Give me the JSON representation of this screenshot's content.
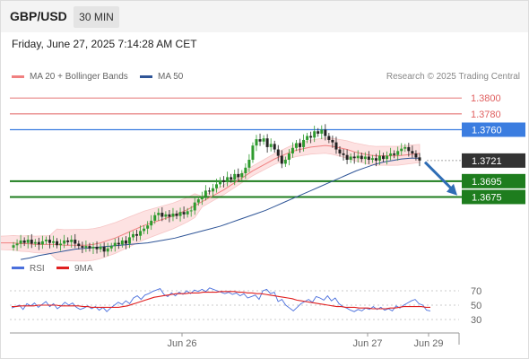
{
  "header": {
    "symbol": "GBP/USD",
    "timeframe": "30 MIN"
  },
  "datetime": "Friday, June 27, 2025 7:14:28 AM CET",
  "legend": {
    "items": [
      {
        "label": "MA 20 + Bollinger Bands",
        "color": "#f08080"
      },
      {
        "label": "MA 50",
        "color": "#2f5597"
      }
    ],
    "credit": "Research © 2025 Trading Central"
  },
  "colors": {
    "up": "#2e9b2e",
    "down": "#222222",
    "resistance": "#e06060",
    "pivot": "#3b7de0",
    "support": "#1e7d1e",
    "arrow": "#2f6db5"
  },
  "chart_data": [
    {
      "type": "candlestick",
      "ylim": [
        1.3595,
        1.3815
      ],
      "x_ticks": [
        "Jun 26",
        "Jun 27",
        "Jun 29"
      ],
      "levels": [
        {
          "label": "1.3800",
          "value": 1.38,
          "kind": "resistance"
        },
        {
          "label": "1.3780",
          "value": 1.378,
          "kind": "resistance"
        },
        {
          "label": "1.3760",
          "value": 1.376,
          "kind": "pivot"
        },
        {
          "label": "1.3721",
          "value": 1.3721,
          "kind": "last"
        },
        {
          "label": "1.3695",
          "value": 1.3695,
          "kind": "support"
        },
        {
          "label": "1.3675",
          "value": 1.3675,
          "kind": "support"
        }
      ],
      "close": [
        1.3614,
        1.3616,
        1.362,
        1.3617,
        1.3621,
        1.3616,
        1.3618,
        1.3615,
        1.3619,
        1.3621,
        1.3617,
        1.3619,
        1.3614,
        1.3616,
        1.362,
        1.3618,
        1.3621,
        1.3616,
        1.3613,
        1.3611,
        1.3613,
        1.361,
        1.3612,
        1.3609,
        1.3612,
        1.3606,
        1.361,
        1.3613,
        1.3617,
        1.3615,
        1.362,
        1.3616,
        1.3624,
        1.3628,
        1.3626,
        1.3632,
        1.3635,
        1.3639,
        1.3645,
        1.3652,
        1.3655,
        1.365,
        1.3653,
        1.365,
        1.3654,
        1.3651,
        1.3656,
        1.3653,
        1.3657,
        1.3658,
        1.3668,
        1.3672,
        1.3676,
        1.3683,
        1.3682,
        1.3686,
        1.3691,
        1.3696,
        1.3694,
        1.37,
        1.3697,
        1.3704,
        1.37,
        1.3705,
        1.3712,
        1.3722,
        1.374,
        1.3748,
        1.3745,
        1.3749,
        1.3738,
        1.3742,
        1.3735,
        1.3727,
        1.3717,
        1.3722,
        1.373,
        1.3737,
        1.3743,
        1.3738,
        1.3747,
        1.3752,
        1.375,
        1.3758,
        1.3755,
        1.376,
        1.3752,
        1.3747,
        1.3744,
        1.3735,
        1.373,
        1.3728,
        1.3722,
        1.3726,
        1.3724,
        1.3727,
        1.3723,
        1.3726,
        1.3722,
        1.3724,
        1.3721,
        1.3727,
        1.3723,
        1.3727,
        1.373,
        1.3728,
        1.3733,
        1.3736,
        1.3738,
        1.3733,
        1.373,
        1.3725,
        1.3721
      ],
      "ma20": [
        1.3611,
        1.3612,
        1.3613,
        1.3613,
        1.3614,
        1.3615,
        1.3615,
        1.3616,
        1.3616,
        1.3617,
        1.3617,
        1.3617,
        1.3616,
        1.3616,
        1.3615,
        1.3615,
        1.3615,
        1.3615,
        1.3614,
        1.3614,
        1.3614,
        1.3614,
        1.3615,
        1.3617,
        1.362,
        1.3623,
        1.3627,
        1.3631,
        1.3635,
        1.3639,
        1.3642,
        1.3645,
        1.3648,
        1.3651,
        1.3655,
        1.3659,
        1.3664,
        1.3669,
        1.3674,
        1.3679,
        1.3684,
        1.369,
        1.3696,
        1.3702,
        1.3708,
        1.3713,
        1.3718,
        1.3723,
        1.3727,
        1.3731,
        1.3734,
        1.3736,
        1.3738,
        1.3739,
        1.374,
        1.3739,
        1.3737,
        1.3735,
        1.3732,
        1.373,
        1.3728,
        1.3727,
        1.3727,
        1.3727,
        1.3727,
        1.3728,
        1.3729,
        1.373
      ],
      "ma50": [
        1.3596,
        1.3598,
        1.3601,
        1.3603,
        1.3605,
        1.3607,
        1.3609,
        1.361,
        1.3611,
        1.3612,
        1.3613,
        1.3614,
        1.3615,
        1.3616,
        1.3617,
        1.3619,
        1.3621,
        1.3623,
        1.3626,
        1.3629,
        1.3632,
        1.3635,
        1.3638,
        1.3642,
        1.3646,
        1.365,
        1.3654,
        1.3658,
        1.3663,
        1.3668,
        1.3673,
        1.3678,
        1.3683,
        1.3688,
        1.3693,
        1.3698,
        1.3703,
        1.3708,
        1.3712,
        1.3716,
        1.3719,
        1.3721,
        1.3723,
        1.3724,
        1.3724
      ]
    },
    {
      "type": "line",
      "legend": [
        "RSI",
        "9MA"
      ],
      "colors": [
        "#4a6fdc",
        "#e02020"
      ],
      "ylim": [
        20,
        80
      ],
      "y_ticks": [
        "70",
        "50",
        "30"
      ],
      "series": [
        {
          "name": "RSI",
          "values": [
            46,
            48,
            50,
            44,
            52,
            49,
            53,
            47,
            51,
            55,
            48,
            52,
            45,
            49,
            54,
            50,
            53,
            47,
            44,
            46,
            49,
            45,
            48,
            43,
            47,
            41,
            46,
            50,
            54,
            51,
            56,
            52,
            60,
            63,
            58,
            64,
            66,
            69,
            71,
            73,
            65,
            62,
            67,
            63,
            68,
            65,
            70,
            66,
            71,
            69,
            72,
            69,
            74,
            72,
            70,
            68,
            66,
            68,
            65,
            67,
            63,
            66,
            60,
            62,
            64,
            58,
            70,
            72,
            66,
            68,
            55,
            58,
            50,
            46,
            42,
            47,
            52,
            55,
            58,
            54,
            62,
            60,
            57,
            63,
            56,
            60,
            52,
            48,
            46,
            43,
            41,
            44,
            42,
            46,
            44,
            48,
            44,
            47,
            43,
            45,
            42,
            49,
            46,
            50,
            53,
            56,
            58,
            52,
            50,
            43,
            42
          ]
        },
        {
          "name": "9MA",
          "values": [
            48,
            48,
            49,
            49,
            49,
            49,
            50,
            50,
            50,
            50,
            50,
            49,
            49,
            49,
            49,
            49,
            48,
            48,
            47,
            47,
            47,
            47,
            47,
            47,
            47,
            48,
            49,
            51,
            53,
            55,
            57,
            59,
            61,
            62,
            63,
            64,
            65,
            66,
            66,
            66,
            67,
            67,
            67,
            68,
            68,
            68,
            68,
            69,
            69,
            69,
            69,
            68,
            68,
            67,
            67,
            66,
            66,
            65,
            64,
            63,
            62,
            61,
            60,
            59,
            57,
            56,
            55,
            54,
            53,
            52,
            51,
            50,
            49,
            48,
            48,
            47,
            47,
            47,
            46,
            46,
            46,
            45,
            45,
            45,
            45,
            46,
            46,
            47,
            48,
            48,
            48,
            48,
            48,
            47,
            47
          ]
        }
      ]
    }
  ]
}
